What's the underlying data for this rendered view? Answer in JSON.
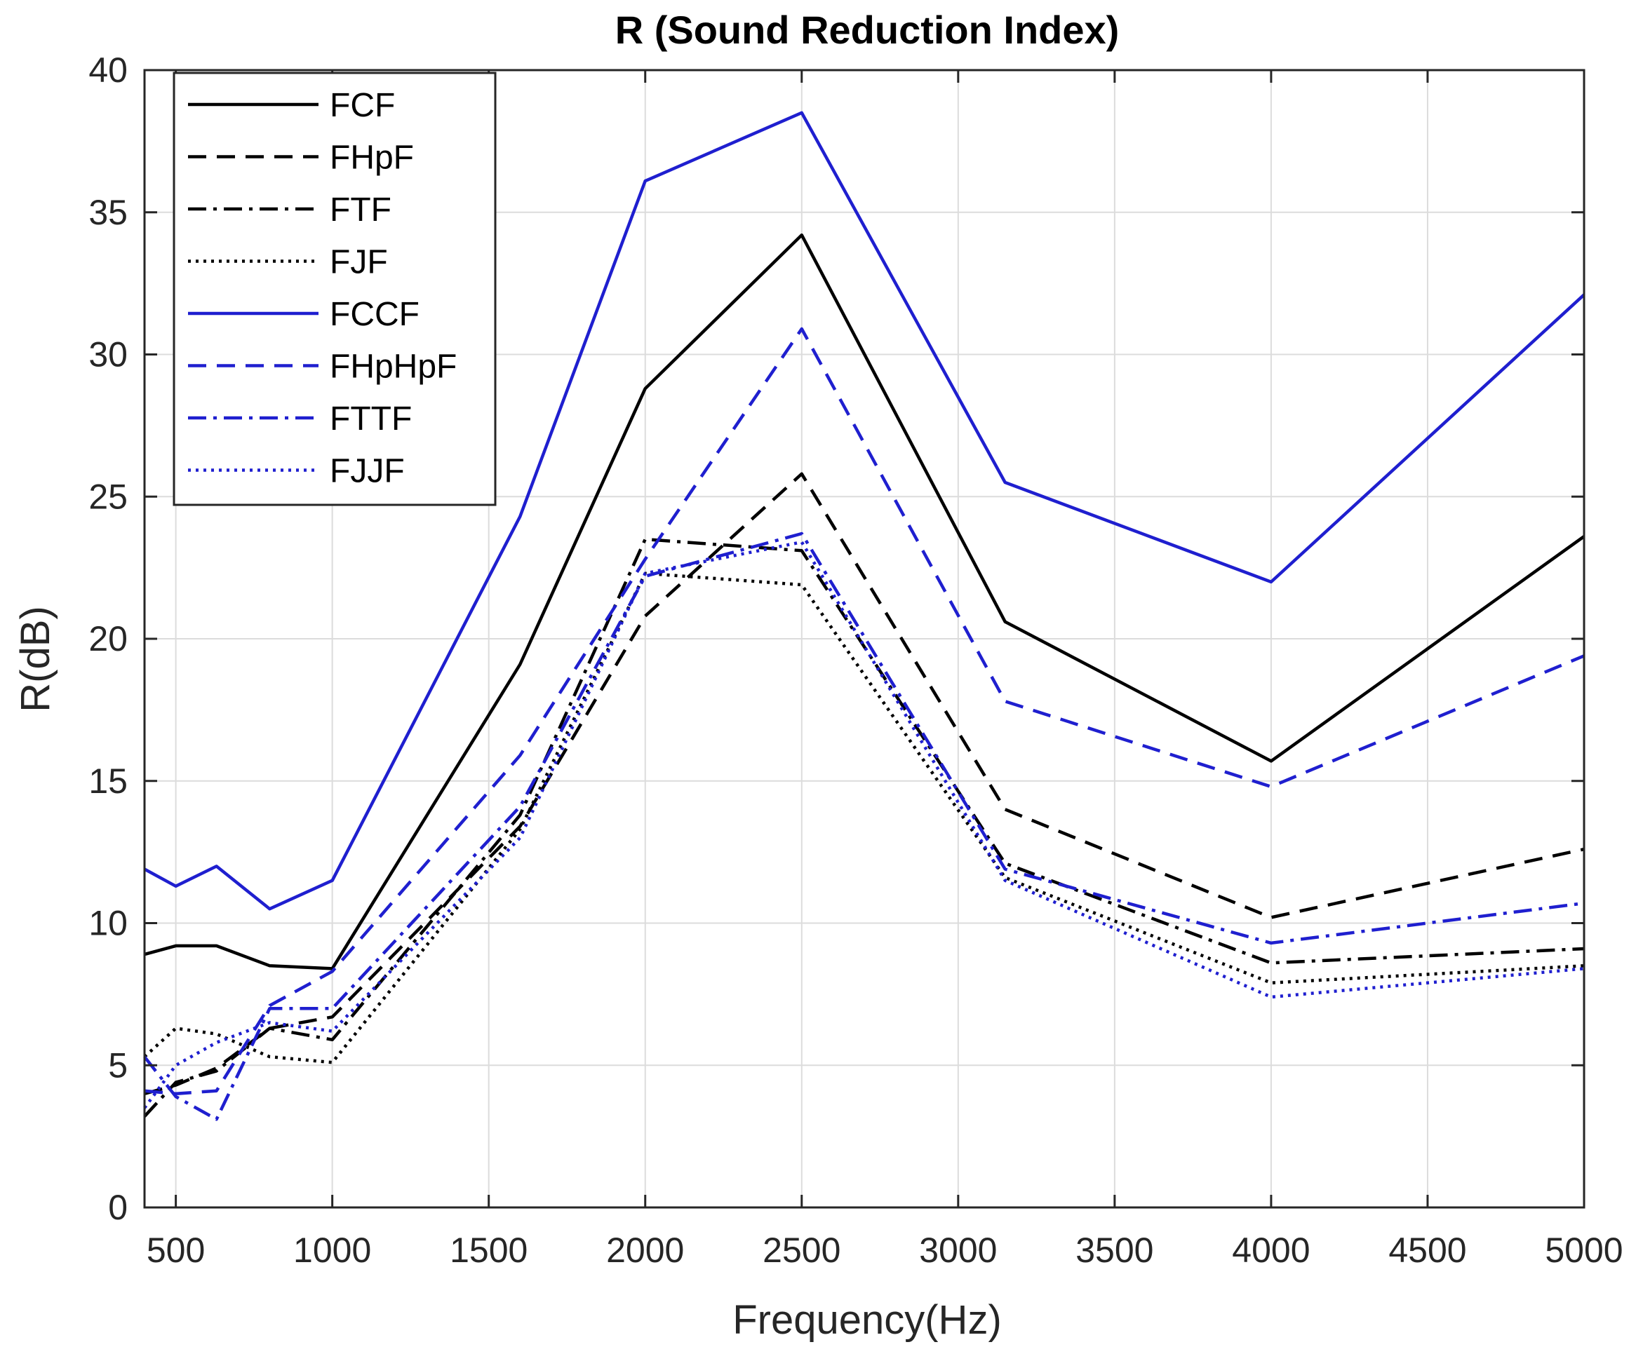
{
  "chart_data": {
    "type": "line",
    "title": "R (Sound Reduction Index)",
    "xlabel": "Frequency(Hz)",
    "ylabel": "R(dB)",
    "xlim": [
      400,
      5000
    ],
    "ylim": [
      0,
      40
    ],
    "xticks": [
      500,
      1000,
      1500,
      2000,
      2500,
      3000,
      3500,
      4000,
      4500,
      5000
    ],
    "yticks": [
      0,
      5,
      10,
      15,
      20,
      25,
      30,
      35,
      40
    ],
    "grid": true,
    "legend_position": "top-left",
    "x": [
      400,
      500,
      630,
      800,
      1000,
      1600,
      2000,
      2500,
      3150,
      4000,
      5000
    ],
    "series": [
      {
        "name": "FCF",
        "color": "#000000",
        "dash": "solid",
        "values": [
          8.9,
          9.2,
          9.2,
          8.5,
          8.4,
          19.1,
          28.8,
          34.2,
          20.6,
          15.7,
          23.6
        ]
      },
      {
        "name": "FHpF",
        "color": "#000000",
        "dash": "dashed",
        "values": [
          4.0,
          4.3,
          4.9,
          6.3,
          6.7,
          13.4,
          20.8,
          25.8,
          14.0,
          10.2,
          12.6
        ]
      },
      {
        "name": "FTF",
        "color": "#000000",
        "dash": "dashdot",
        "values": [
          3.2,
          4.4,
          4.8,
          6.3,
          5.9,
          13.8,
          23.5,
          23.1,
          12.1,
          8.6,
          9.1
        ]
      },
      {
        "name": "FJF",
        "color": "#000000",
        "dash": "dotted",
        "values": [
          5.3,
          6.3,
          6.1,
          5.3,
          5.1,
          13.3,
          22.3,
          21.9,
          11.6,
          7.9,
          8.5
        ]
      },
      {
        "name": "FCCF",
        "color": "#1f1fcf",
        "dash": "solid",
        "values": [
          11.9,
          11.3,
          12.0,
          10.5,
          11.5,
          24.3,
          36.1,
          38.5,
          25.5,
          22.0,
          32.1
        ]
      },
      {
        "name": "FHpHpF",
        "color": "#1f1fcf",
        "dash": "dashed",
        "values": [
          4.1,
          4.0,
          4.1,
          7.1,
          8.3,
          15.9,
          22.8,
          30.9,
          17.8,
          14.8,
          19.4
        ]
      },
      {
        "name": "FTTF",
        "color": "#1f1fcf",
        "dash": "dashdot",
        "values": [
          5.3,
          3.9,
          3.1,
          7.0,
          7.0,
          14.1,
          22.2,
          23.7,
          11.9,
          9.3,
          10.7
        ]
      },
      {
        "name": "FJJF",
        "color": "#1f1fcf",
        "dash": "dotted",
        "values": [
          3.5,
          5.0,
          5.8,
          6.5,
          6.2,
          13.0,
          22.3,
          23.4,
          11.5,
          7.4,
          8.4
        ]
      }
    ]
  }
}
